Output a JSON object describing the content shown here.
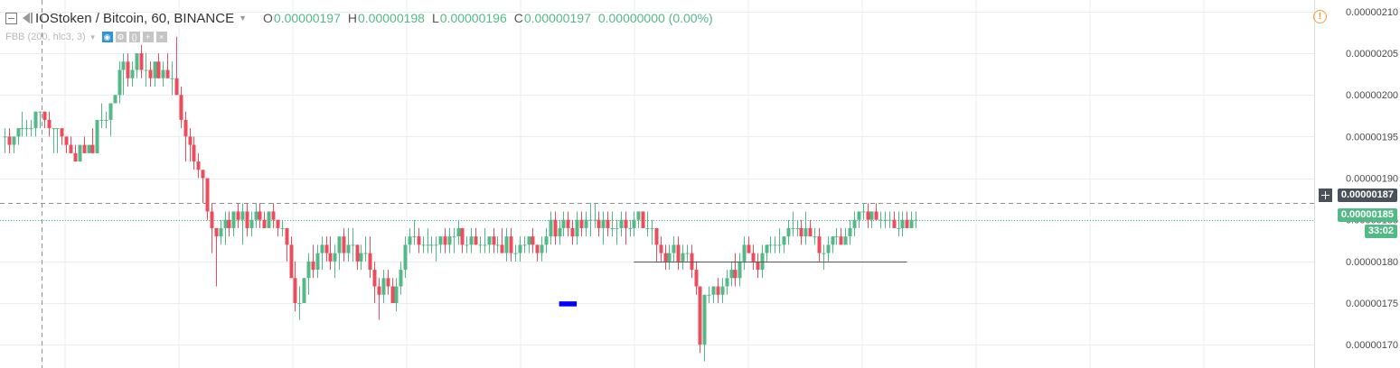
{
  "header": {
    "title": "IOStoken / Bitcoin, 60, BINANCE",
    "ohlc": [
      {
        "key": "O",
        "value": "0.00000197"
      },
      {
        "key": "H",
        "value": "0.00000198"
      },
      {
        "key": "L",
        "value": "0.00000196"
      },
      {
        "key": "C",
        "value": "0.00000197"
      }
    ],
    "change": "0.00000000 (0.00%)"
  },
  "indicator": {
    "label": "FBB (200, hlc3, 3)",
    "buttons": [
      "eye-icon",
      "settings-icon",
      "source-icon",
      "plus-icon",
      "close-icon"
    ]
  },
  "labels": {
    "crosshair_price": "0.00000187",
    "last_price": "0.00000185",
    "countdown": "33:02"
  },
  "colors": {
    "up": "#53b987",
    "down": "#eb4d5c",
    "grid": "#e9edf2",
    "crosshair_label": "#4a5158",
    "last_price_label": "#53b987",
    "alert": "#f59c34",
    "drawing_rect": "#0000ff"
  },
  "chart_data": {
    "type": "candlestick",
    "ylim": [
      1.672e-06,
      2.114e-06
    ],
    "y_ticks": [
      "0.00000210",
      "0.00000205",
      "0.00000200",
      "0.00000195",
      "0.00000190",
      "0.00000185",
      "0.00000180",
      "0.00000175",
      "0.00000170"
    ],
    "y_tick_values": [
      2.1e-06,
      2.05e-06,
      2e-06,
      1.95e-06,
      1.9e-06,
      1.85e-06,
      1.8e-06,
      1.75e-06,
      1.7e-06
    ],
    "crosshair_price": 1.87e-06,
    "last_price": 1.85e-06,
    "horizontal_line": {
      "price": 1.8e-06,
      "from_bar": 143,
      "to_bar": 205
    },
    "drawing_rect": {
      "price_top": 1.752e-06,
      "price_bottom": 1.746e-06,
      "from_bar": 126,
      "to_bar": 130
    },
    "bars_from_index": 0,
    "candles": [
      [
        1.95e-06,
        1.96e-06,
        1.93e-06,
        1.95e-06
      ],
      [
        1.95e-06,
        1.96e-06,
        1.93e-06,
        1.94e-06
      ],
      [
        1.94e-06,
        1.95e-06,
        1.93e-06,
        1.95e-06
      ],
      [
        1.95e-06,
        1.96e-06,
        1.94e-06,
        1.96e-06
      ],
      [
        1.96e-06,
        1.98e-06,
        1.95e-06,
        1.96e-06
      ],
      [
        1.96e-06,
        1.97e-06,
        1.95e-06,
        1.96e-06
      ],
      [
        1.96e-06,
        1.97e-06,
        1.95e-06,
        1.96e-06
      ],
      [
        1.96e-06,
        1.98e-06,
        1.95e-06,
        1.98e-06
      ],
      [
        1.98e-06,
        1.98e-06,
        1.96e-06,
        1.98e-06
      ],
      [
        1.98e-06,
        1.98e-06,
        1.96e-06,
        1.97e-06
      ],
      [
        1.97e-06,
        1.98e-06,
        1.95e-06,
        1.96e-06
      ],
      [
        1.96e-06,
        1.96e-06,
        1.93e-06,
        1.96e-06
      ],
      [
        1.96e-06,
        1.96e-06,
        1.93e-06,
        1.96e-06
      ],
      [
        1.96e-06,
        1.96e-06,
        1.94e-06,
        1.95e-06
      ],
      [
        1.95e-06,
        1.95e-06,
        1.93e-06,
        1.94e-06
      ],
      [
        1.94e-06,
        1.95e-06,
        1.93e-06,
        1.93e-06
      ],
      [
        1.93e-06,
        1.94e-06,
        1.92e-06,
        1.92e-06
      ],
      [
        1.92e-06,
        1.94e-06,
        1.92e-06,
        1.94e-06
      ],
      [
        1.94e-06,
        1.95e-06,
        1.93e-06,
        1.93e-06
      ],
      [
        1.93e-06,
        1.94e-06,
        1.93e-06,
        1.94e-06
      ],
      [
        1.94e-06,
        1.96e-06,
        1.93e-06,
        1.93e-06
      ],
      [
        1.93e-06,
        1.97e-06,
        1.93e-06,
        1.97e-06
      ],
      [
        1.97e-06,
        1.99e-06,
        1.96e-06,
        1.97e-06
      ],
      [
        1.97e-06,
        1.98e-06,
        1.96e-06,
        1.97e-06
      ],
      [
        1.97e-06,
        1.99e-06,
        1.95e-06,
        1.99e-06
      ],
      [
        1.99e-06,
        2e-06,
        1.99e-06,
        2e-06
      ],
      [
        2e-06,
        2.04e-06,
        1.99e-06,
        2.03e-06
      ],
      [
        2.03e-06,
        2.05e-06,
        2e-06,
        2.04e-06
      ],
      [
        2.04e-06,
        2.05e-06,
        2.01e-06,
        2.02e-06
      ],
      [
        2.02e-06,
        2.04e-06,
        2.01e-06,
        2.03e-06
      ],
      [
        2.03e-06,
        2.05e-06,
        2.02e-06,
        2.05e-06
      ],
      [
        2.05e-06,
        2.06e-06,
        2.02e-06,
        2.03e-06
      ],
      [
        2.03e-06,
        2.05e-06,
        2.01e-06,
        2.03e-06
      ],
      [
        2.03e-06,
        2.04e-06,
        2.01e-06,
        2.02e-06
      ],
      [
        2.02e-06,
        2.04e-06,
        2.01e-06,
        2.04e-06
      ],
      [
        2.04e-06,
        2.05e-06,
        2.02e-06,
        2.02e-06
      ],
      [
        2.02e-06,
        2.04e-06,
        2.01e-06,
        2.03e-06
      ],
      [
        2.03e-06,
        2.05e-06,
        2.02e-06,
        2.02e-06
      ],
      [
        2.02e-06,
        2.04e-06,
        2e-06,
        2.02e-06
      ],
      [
        2.02e-06,
        2.07e-06,
        2e-06,
        2e-06
      ],
      [
        2e-06,
        2.01e-06,
        1.96e-06,
        1.97e-06
      ],
      [
        1.97e-06,
        1.98e-06,
        1.92e-06,
        1.95e-06
      ],
      [
        1.95e-06,
        1.96e-06,
        1.92e-06,
        1.94e-06
      ],
      [
        1.94e-06,
        1.95e-06,
        1.91e-06,
        1.92e-06
      ],
      [
        1.92e-06,
        1.93e-06,
        1.9e-06,
        1.91e-06
      ],
      [
        1.91e-06,
        1.91e-06,
        1.87e-06,
        1.9e-06
      ],
      [
        1.9e-06,
        1.9e-06,
        1.85e-06,
        1.86e-06
      ],
      [
        1.86e-06,
        1.87e-06,
        1.81e-06,
        1.84e-06
      ],
      [
        1.84e-06,
        1.84e-06,
        1.77e-06,
        1.83e-06
      ],
      [
        1.83e-06,
        1.85e-06,
        1.82e-06,
        1.84e-06
      ],
      [
        1.84e-06,
        1.86e-06,
        1.82e-06,
        1.85e-06
      ],
      [
        1.85e-06,
        1.86e-06,
        1.83e-06,
        1.84e-06
      ],
      [
        1.84e-06,
        1.86e-06,
        1.83e-06,
        1.86e-06
      ],
      [
        1.86e-06,
        1.87e-06,
        1.84e-06,
        1.85e-06
      ],
      [
        1.85e-06,
        1.87e-06,
        1.82e-06,
        1.86e-06
      ],
      [
        1.86e-06,
        1.87e-06,
        1.83e-06,
        1.84e-06
      ],
      [
        1.84e-06,
        1.86e-06,
        1.83e-06,
        1.85e-06
      ],
      [
        1.85e-06,
        1.87e-06,
        1.84e-06,
        1.86e-06
      ],
      [
        1.86e-06,
        1.87e-06,
        1.84e-06,
        1.85e-06
      ],
      [
        1.85e-06,
        1.86e-06,
        1.84e-06,
        1.84e-06
      ],
      [
        1.84e-06,
        1.86e-06,
        1.84e-06,
        1.86e-06
      ],
      [
        1.86e-06,
        1.87e-06,
        1.84e-06,
        1.85e-06
      ],
      [
        1.85e-06,
        1.85e-06,
        1.83e-06,
        1.84e-06
      ],
      [
        1.84e-06,
        1.85e-06,
        1.83e-06,
        1.84e-06
      ],
      [
        1.84e-06,
        1.84e-06,
        1.8e-06,
        1.82e-06
      ],
      [
        1.82e-06,
        1.83e-06,
        1.78e-06,
        1.78e-06
      ],
      [
        1.78e-06,
        1.8e-06,
        1.74e-06,
        1.75e-06
      ],
      [
        1.75e-06,
        1.77e-06,
        1.73e-06,
        1.75e-06
      ],
      [
        1.75e-06,
        1.78e-06,
        1.75e-06,
        1.78e-06
      ],
      [
        1.78e-06,
        1.81e-06,
        1.76e-06,
        1.8e-06
      ],
      [
        1.8e-06,
        1.82e-06,
        1.78e-06,
        1.79e-06
      ],
      [
        1.79e-06,
        1.82e-06,
        1.78e-06,
        1.81e-06
      ],
      [
        1.81e-06,
        1.83e-06,
        1.79e-06,
        1.82e-06
      ],
      [
        1.82e-06,
        1.83e-06,
        1.8e-06,
        1.81e-06
      ],
      [
        1.81e-06,
        1.83e-06,
        1.79e-06,
        1.8e-06
      ],
      [
        1.8e-06,
        1.82e-06,
        1.78e-06,
        1.81e-06
      ],
      [
        1.81e-06,
        1.83e-06,
        1.79e-06,
        1.83e-06
      ],
      [
        1.83e-06,
        1.84e-06,
        1.8e-06,
        1.81e-06
      ],
      [
        1.81e-06,
        1.84e-06,
        1.8e-06,
        1.82e-06
      ],
      [
        1.82e-06,
        1.84e-06,
        1.8e-06,
        1.82e-06
      ],
      [
        1.82e-06,
        1.82e-06,
        1.79e-06,
        1.8e-06
      ],
      [
        1.8e-06,
        1.82e-06,
        1.79e-06,
        1.81e-06
      ],
      [
        1.81e-06,
        1.83e-06,
        1.8e-06,
        1.81e-06
      ],
      [
        1.81e-06,
        1.83e-06,
        1.78e-06,
        1.79e-06
      ],
      [
        1.79e-06,
        1.8e-06,
        1.75e-06,
        1.77e-06
      ],
      [
        1.77e-06,
        1.78e-06,
        1.73e-06,
        1.76e-06
      ],
      [
        1.76e-06,
        1.79e-06,
        1.75e-06,
        1.78e-06
      ],
      [
        1.78e-06,
        1.79e-06,
        1.76e-06,
        1.77e-06
      ],
      [
        1.77e-06,
        1.78e-06,
        1.75e-06,
        1.75e-06
      ],
      [
        1.75e-06,
        1.78e-06,
        1.74e-06,
        1.77e-06
      ],
      [
        1.77e-06,
        1.8e-06,
        1.76e-06,
        1.79e-06
      ],
      [
        1.79e-06,
        1.83e-06,
        1.78e-06,
        1.82e-06
      ],
      [
        1.82e-06,
        1.84e-06,
        1.81e-06,
        1.83e-06
      ],
      [
        1.83e-06,
        1.85e-06,
        1.82e-06,
        1.83e-06
      ],
      [
        1.83e-06,
        1.84e-06,
        1.81e-06,
        1.82e-06
      ],
      [
        1.82e-06,
        1.83e-06,
        1.81e-06,
        1.82e-06
      ],
      [
        1.82e-06,
        1.84e-06,
        1.81e-06,
        1.82e-06
      ],
      [
        1.82e-06,
        1.83e-06,
        1.81e-06,
        1.82e-06
      ],
      [
        1.82e-06,
        1.83e-06,
        1.8e-06,
        1.82e-06
      ],
      [
        1.82e-06,
        1.83e-06,
        1.81e-06,
        1.83e-06
      ],
      [
        1.83e-06,
        1.84e-06,
        1.81e-06,
        1.82e-06
      ],
      [
        1.82e-06,
        1.84e-06,
        1.81e-06,
        1.83e-06
      ],
      [
        1.83e-06,
        1.84e-06,
        1.81e-06,
        1.83e-06
      ],
      [
        1.83e-06,
        1.85e-06,
        1.82e-06,
        1.84e-06
      ],
      [
        1.84e-06,
        1.84e-06,
        1.81e-06,
        1.82e-06
      ],
      [
        1.82e-06,
        1.83e-06,
        1.81e-06,
        1.82e-06
      ],
      [
        1.82e-06,
        1.84e-06,
        1.81e-06,
        1.83e-06
      ],
      [
        1.83e-06,
        1.84e-06,
        1.82e-06,
        1.82e-06
      ],
      [
        1.82e-06,
        1.83e-06,
        1.81e-06,
        1.82e-06
      ],
      [
        1.82e-06,
        1.84e-06,
        1.81e-06,
        1.82e-06
      ],
      [
        1.82e-06,
        1.83e-06,
        1.81e-06,
        1.83e-06
      ],
      [
        1.83e-06,
        1.84e-06,
        1.81e-06,
        1.82e-06
      ],
      [
        1.82e-06,
        1.83e-06,
        1.81e-06,
        1.82e-06
      ],
      [
        1.82e-06,
        1.84e-06,
        1.81e-06,
        1.81e-06
      ],
      [
        1.81e-06,
        1.84e-06,
        1.8e-06,
        1.83e-06
      ],
      [
        1.83e-06,
        1.84e-06,
        1.8e-06,
        1.81e-06
      ],
      [
        1.81e-06,
        1.82e-06,
        1.8e-06,
        1.81e-06
      ],
      [
        1.81e-06,
        1.83e-06,
        1.8e-06,
        1.82e-06
      ],
      [
        1.82e-06,
        1.83e-06,
        1.81e-06,
        1.82e-06
      ],
      [
        1.82e-06,
        1.83e-06,
        1.81e-06,
        1.83e-06
      ],
      [
        1.83e-06,
        1.84e-06,
        1.81e-06,
        1.82e-06
      ],
      [
        1.82e-06,
        1.82e-06,
        1.8e-06,
        1.81e-06
      ],
      [
        1.81e-06,
        1.83e-06,
        1.8e-06,
        1.82e-06
      ],
      [
        1.82e-06,
        1.84e-06,
        1.81e-06,
        1.83e-06
      ],
      [
        1.83e-06,
        1.86e-06,
        1.82e-06,
        1.85e-06
      ],
      [
        1.85e-06,
        1.86e-06,
        1.82e-06,
        1.83e-06
      ],
      [
        1.83e-06,
        1.85e-06,
        1.82e-06,
        1.84e-06
      ],
      [
        1.84e-06,
        1.86e-06,
        1.83e-06,
        1.85e-06
      ],
      [
        1.85e-06,
        1.86e-06,
        1.83e-06,
        1.84e-06
      ],
      [
        1.84e-06,
        1.85e-06,
        1.82e-06,
        1.83e-06
      ],
      [
        1.83e-06,
        1.86e-06,
        1.82e-06,
        1.85e-06
      ],
      [
        1.85e-06,
        1.86e-06,
        1.83e-06,
        1.84e-06
      ],
      [
        1.84e-06,
        1.86e-06,
        1.83e-06,
        1.85e-06
      ],
      [
        1.85e-06,
        1.87e-06,
        1.83e-06,
        1.85e-06
      ],
      [
        1.85e-06,
        1.87e-06,
        1.84e-06,
        1.85e-06
      ],
      [
        1.85e-06,
        1.86e-06,
        1.83e-06,
        1.84e-06
      ],
      [
        1.84e-06,
        1.86e-06,
        1.82e-06,
        1.85e-06
      ],
      [
        1.85e-06,
        1.86e-06,
        1.83e-06,
        1.84e-06
      ],
      [
        1.84e-06,
        1.86e-06,
        1.83e-06,
        1.84e-06
      ],
      [
        1.84e-06,
        1.85e-06,
        1.82e-06,
        1.84e-06
      ],
      [
        1.84e-06,
        1.86e-06,
        1.83e-06,
        1.85e-06
      ],
      [
        1.85e-06,
        1.86e-06,
        1.82e-06,
        1.84e-06
      ],
      [
        1.84e-06,
        1.85e-06,
        1.83e-06,
        1.84e-06
      ],
      [
        1.84e-06,
        1.86e-06,
        1.83e-06,
        1.85e-06
      ],
      [
        1.85e-06,
        1.86e-06,
        1.84e-06,
        1.86e-06
      ],
      [
        1.86e-06,
        1.86e-06,
        1.84e-06,
        1.84e-06
      ],
      [
        1.84e-06,
        1.86e-06,
        1.83e-06,
        1.84e-06
      ],
      [
        1.84e-06,
        1.85e-06,
        1.82e-06,
        1.84e-06
      ],
      [
        1.84e-06,
        1.84e-06,
        1.8e-06,
        1.82e-06
      ],
      [
        1.82e-06,
        1.83e-06,
        1.8e-06,
        1.81e-06
      ],
      [
        1.81e-06,
        1.82e-06,
        1.79e-06,
        1.8e-06
      ],
      [
        1.8e-06,
        1.82e-06,
        1.79e-06,
        1.81e-06
      ],
      [
        1.81e-06,
        1.83e-06,
        1.8e-06,
        1.82e-06
      ],
      [
        1.82e-06,
        1.83e-06,
        1.79e-06,
        1.8e-06
      ],
      [
        1.8e-06,
        1.82e-06,
        1.79e-06,
        1.81e-06
      ],
      [
        1.81e-06,
        1.82e-06,
        1.8e-06,
        1.81e-06
      ],
      [
        1.81e-06,
        1.82e-06,
        1.78e-06,
        1.79e-06
      ],
      [
        1.79e-06,
        1.8e-06,
        1.76e-06,
        1.77e-06
      ],
      [
        1.77e-06,
        1.77e-06,
        1.69e-06,
        1.7e-06
      ],
      [
        1.7e-06,
        1.76e-06,
        1.68e-06,
        1.76e-06
      ],
      [
        1.76e-06,
        1.77e-06,
        1.75e-06,
        1.76e-06
      ],
      [
        1.76e-06,
        1.77e-06,
        1.75e-06,
        1.77e-06
      ],
      [
        1.77e-06,
        1.78e-06,
        1.75e-06,
        1.76e-06
      ],
      [
        1.76e-06,
        1.78e-06,
        1.75e-06,
        1.77e-06
      ],
      [
        1.77e-06,
        1.79e-06,
        1.76e-06,
        1.78e-06
      ],
      [
        1.78e-06,
        1.8e-06,
        1.77e-06,
        1.79e-06
      ],
      [
        1.79e-06,
        1.81e-06,
        1.77e-06,
        1.78e-06
      ],
      [
        1.78e-06,
        1.81e-06,
        1.77e-06,
        1.8e-06
      ],
      [
        1.8e-06,
        1.83e-06,
        1.79e-06,
        1.82e-06
      ],
      [
        1.82e-06,
        1.83e-06,
        1.81e-06,
        1.81e-06
      ],
      [
        1.81e-06,
        1.82e-06,
        1.79e-06,
        1.8e-06
      ],
      [
        1.8e-06,
        1.81e-06,
        1.78e-06,
        1.79e-06
      ],
      [
        1.79e-06,
        1.82e-06,
        1.78e-06,
        1.81e-06
      ],
      [
        1.81e-06,
        1.82e-06,
        1.8e-06,
        1.82e-06
      ],
      [
        1.82e-06,
        1.83e-06,
        1.81e-06,
        1.82e-06
      ],
      [
        1.82e-06,
        1.83e-06,
        1.81e-06,
        1.82e-06
      ],
      [
        1.82e-06,
        1.84e-06,
        1.81e-06,
        1.82e-06
      ],
      [
        1.82e-06,
        1.83e-06,
        1.81e-06,
        1.83e-06
      ],
      [
        1.83e-06,
        1.85e-06,
        1.82e-06,
        1.84e-06
      ],
      [
        1.84e-06,
        1.86e-06,
        1.83e-06,
        1.84e-06
      ],
      [
        1.84e-06,
        1.85e-06,
        1.83e-06,
        1.84e-06
      ],
      [
        1.84e-06,
        1.85e-06,
        1.82e-06,
        1.83e-06
      ],
      [
        1.83e-06,
        1.86e-06,
        1.82e-06,
        1.84e-06
      ],
      [
        1.84e-06,
        1.85e-06,
        1.83e-06,
        1.83e-06
      ],
      [
        1.83e-06,
        1.84e-06,
        1.82e-06,
        1.83e-06
      ],
      [
        1.83e-06,
        1.84e-06,
        1.8e-06,
        1.81e-06
      ],
      [
        1.81e-06,
        1.82e-06,
        1.79e-06,
        1.81e-06
      ],
      [
        1.81e-06,
        1.83e-06,
        1.8e-06,
        1.82e-06
      ],
      [
        1.82e-06,
        1.83e-06,
        1.81e-06,
        1.83e-06
      ],
      [
        1.83e-06,
        1.84e-06,
        1.82e-06,
        1.83e-06
      ],
      [
        1.83e-06,
        1.84e-06,
        1.82e-06,
        1.82e-06
      ],
      [
        1.82e-06,
        1.84e-06,
        1.82e-06,
        1.83e-06
      ],
      [
        1.83e-06,
        1.85e-06,
        1.82e-06,
        1.84e-06
      ],
      [
        1.84e-06,
        1.86e-06,
        1.83e-06,
        1.85e-06
      ],
      [
        1.85e-06,
        1.86e-06,
        1.84e-06,
        1.86e-06
      ],
      [
        1.86e-06,
        1.87e-06,
        1.85e-06,
        1.86e-06
      ],
      [
        1.86e-06,
        1.87e-06,
        1.84e-06,
        1.85e-06
      ],
      [
        1.85e-06,
        1.86e-06,
        1.84e-06,
        1.86e-06
      ],
      [
        1.86e-06,
        1.87e-06,
        1.85e-06,
        1.85e-06
      ],
      [
        1.85e-06,
        1.86e-06,
        1.84e-06,
        1.85e-06
      ],
      [
        1.85e-06,
        1.86e-06,
        1.84e-06,
        1.85e-06
      ],
      [
        1.85e-06,
        1.86e-06,
        1.84e-06,
        1.85e-06
      ],
      [
        1.85e-06,
        1.86e-06,
        1.84e-06,
        1.84e-06
      ],
      [
        1.84e-06,
        1.86e-06,
        1.83e-06,
        1.84e-06
      ],
      [
        1.84e-06,
        1.86e-06,
        1.83e-06,
        1.85e-06
      ],
      [
        1.85e-06,
        1.86e-06,
        1.84e-06,
        1.84e-06
      ],
      [
        1.84e-06,
        1.86e-06,
        1.84e-06,
        1.85e-06
      ],
      [
        1.85e-06,
        1.86e-06,
        1.84e-06,
        1.85e-06
      ]
    ]
  }
}
